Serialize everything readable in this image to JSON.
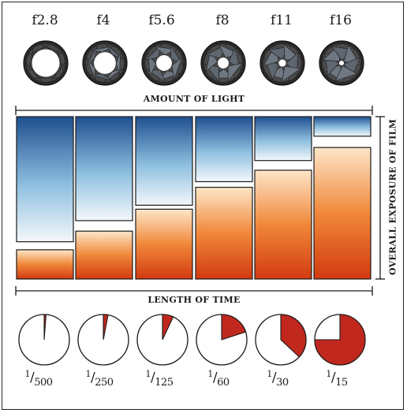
{
  "apertures": [
    {
      "label": "f2.8",
      "openness": 0.78
    },
    {
      "label": "f4",
      "openness": 0.62
    },
    {
      "label": "f5.6",
      "openness": 0.45
    },
    {
      "label": "f8",
      "openness": 0.32
    },
    {
      "label": "f11",
      "openness": 0.22
    },
    {
      "label": "f16",
      "openness": 0.15
    }
  ],
  "light_axis_label": "AMOUNT OF LIGHT",
  "time_axis_label": "LENGTH OF TIME",
  "exposure_axis_label": "OVERALL EXPOSURE OF FILM",
  "exposure_columns": [
    {
      "light_fraction": 0.785,
      "time_fraction": 0.18
    },
    {
      "light_fraction": 0.655,
      "time_fraction": 0.295
    },
    {
      "light_fraction": 0.56,
      "time_fraction": 0.43
    },
    {
      "light_fraction": 0.415,
      "time_fraction": 0.565
    },
    {
      "light_fraction": 0.285,
      "time_fraction": 0.67
    },
    {
      "light_fraction": 0.135,
      "time_fraction": 0.81
    }
  ],
  "shutter_speeds": [
    {
      "label": "1/500",
      "numerator": "1",
      "denominator": "500",
      "fraction": 0.012
    },
    {
      "label": "1/250",
      "numerator": "1",
      "denominator": "250",
      "fraction": 0.03
    },
    {
      "label": "1/125",
      "numerator": "1",
      "denominator": "125",
      "fraction": 0.07
    },
    {
      "label": "1/60",
      "numerator": "1",
      "denominator": "60",
      "fraction": 0.2
    },
    {
      "label": "1/30",
      "numerator": "1",
      "denominator": "30",
      "fraction": 0.37
    },
    {
      "label": "1/15",
      "numerator": "1",
      "denominator": "15",
      "fraction": 0.75
    }
  ],
  "colors": {
    "light_top": "#1f4f8f",
    "light_mid": "#8fc0e0",
    "light_bottom": "#f4f8fb",
    "time_top": "#fde6c8",
    "time_mid": "#f0883a",
    "time_bottom": "#d23a10",
    "pie_fill": "#c0281e",
    "outline": "#1a1a1a"
  }
}
